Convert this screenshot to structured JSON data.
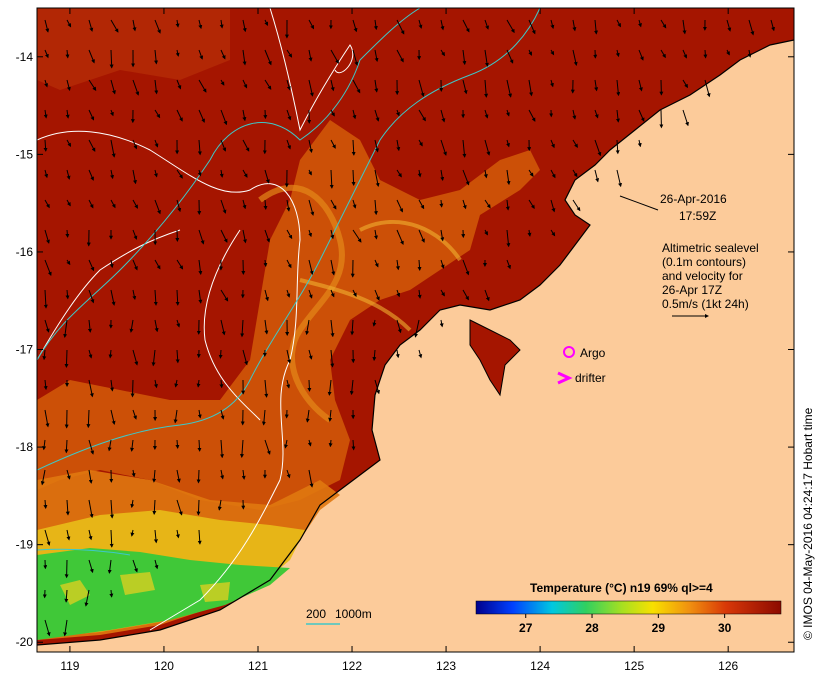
{
  "map": {
    "lon_range": [
      118.65,
      126.7
    ],
    "lat_range": [
      -20.1,
      -13.5
    ],
    "x_ticks": [
      119,
      120,
      121,
      122,
      123,
      124,
      125,
      126
    ],
    "y_ticks": [
      -14,
      -15,
      -16,
      -17,
      -18,
      -19,
      -20
    ],
    "x_tick_labels": [
      "119",
      "120",
      "121",
      "122",
      "123",
      "124",
      "125",
      "126"
    ],
    "y_tick_labels": [
      "-14",
      "-15",
      "-16",
      "-17",
      "-18",
      "-19",
      "-20"
    ]
  },
  "annotations": {
    "date": "26-Apr-2016",
    "time": "17:59Z",
    "alt_line1": "Altimetric sealevel",
    "alt_line2": "(0.1m contours)",
    "alt_line3": "and velocity for",
    "alt_line4": "26-Apr 17Z",
    "alt_line5": "0.5m/s (1kt 24h)",
    "argo_label": "Argo",
    "drifter_label": "drifter",
    "depth_label_200": "200",
    "depth_label_1000": "1000m",
    "credit": "© IMOS 04-May-2016 04:24:17 Hobart time"
  },
  "colorbar": {
    "title": "Temperature (°C) n19 69% ql>=4",
    "tick_labels": [
      "27",
      "28",
      "29",
      "30"
    ],
    "tick_values": [
      27,
      28,
      29,
      30
    ],
    "range": [
      26.25,
      30.85
    ]
  },
  "colors": {
    "land": "#fccb9a",
    "sst_warm": "#a51500",
    "sst_mid": "#d45a06",
    "sst_cool": "#f0c020",
    "sst_coolest": "#38c840",
    "contour_white": "#ffffff",
    "isobath_cyan": "#3ec8c8",
    "argo_marker": "#ff00ff"
  }
}
